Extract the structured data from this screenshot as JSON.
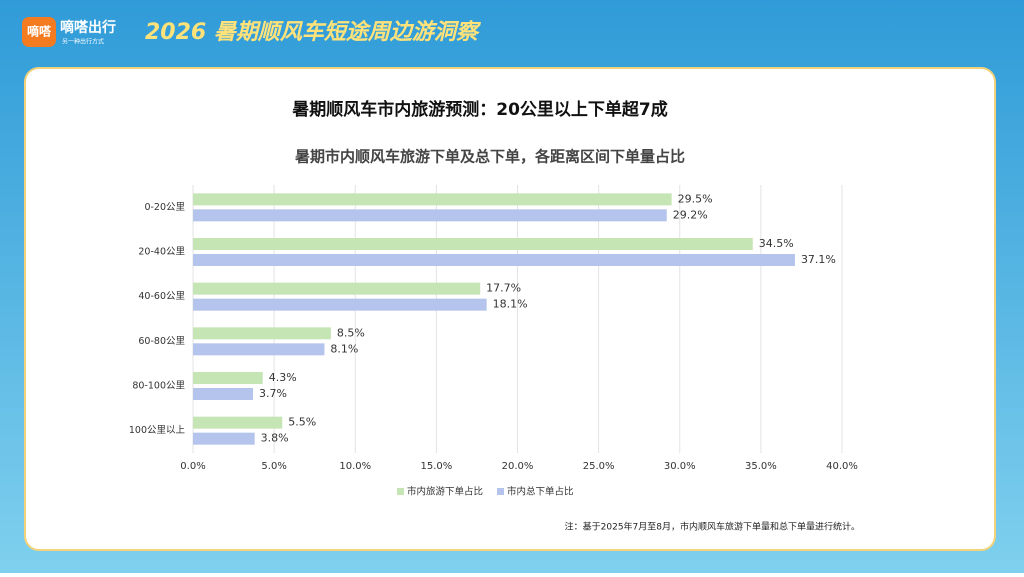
{
  "header": {
    "logo": "嘀嗒",
    "brand": "嘀嗒出行",
    "tagline": "另一种出行方式",
    "title": "2026 暑期顺风车短途周边游洞察"
  },
  "chart_data": {
    "type": "bar",
    "orientation": "horizontal",
    "title": "暑期顺风车市内旅游预测：20公里以上下单超7成",
    "subtitle": "暑期市内顺风车旅游下单及总下单，各距离区间下单量占比",
    "categories": [
      "0-20公里",
      "20-40公里",
      "40-60公里",
      "60-80公里",
      "80-100公里",
      "100公里以上"
    ],
    "series": [
      {
        "name": "市内旅游下单占比",
        "color": "#c6e5b5",
        "values": [
          29.5,
          34.5,
          17.7,
          8.5,
          4.3,
          5.5
        ],
        "value_labels": [
          "29.5%",
          "34.5%",
          "17.7%",
          "8.5%",
          "4.3%",
          "5.5%"
        ]
      },
      {
        "name": "市内总下单占比",
        "color": "#b5c4ec",
        "values": [
          29.2,
          37.1,
          18.1,
          8.1,
          3.7,
          3.8
        ],
        "value_labels": [
          "29.2%",
          "37.1%",
          "18.1%",
          "8.1%",
          "3.7%",
          "3.8%"
        ]
      }
    ],
    "xlim": [
      0,
      40
    ],
    "xticks": [
      {
        "value": 0,
        "label": "0.0%"
      },
      {
        "value": 5,
        "label": "5.0%"
      },
      {
        "value": 10,
        "label": "10.0%"
      },
      {
        "value": 15,
        "label": "15.0%"
      },
      {
        "value": 20,
        "label": "20.0%"
      },
      {
        "value": 25,
        "label": "25.0%"
      },
      {
        "value": 30,
        "label": "30.0%"
      },
      {
        "value": 35,
        "label": "35.0%"
      },
      {
        "value": 40,
        "label": "40.0%"
      }
    ],
    "grid": true,
    "legend": "bottom"
  },
  "footnote": "注：基于2025年7月至8月，市内顺风车旅游下单量和总下单量进行统计。"
}
